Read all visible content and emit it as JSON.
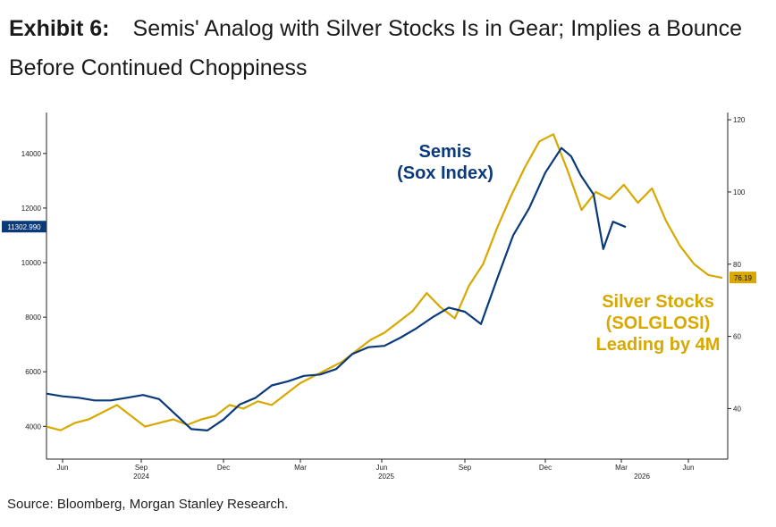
{
  "exhibit_label": "Exhibit 6:",
  "title_text": "Semis' Analog with Silver Stocks Is in Gear; Implies a Bounce Before Continued Choppiness",
  "source_text": "Source: Bloomberg, Morgan Stanley Research.",
  "colors": {
    "semis": "#0b3a7a",
    "silver": "#d9a800",
    "axis": "#222222"
  },
  "chart_data": {
    "type": "line",
    "grid": false,
    "x_ticks": [
      "Jun",
      "Sep",
      "Dec",
      "Mar",
      "Jun",
      "Sep",
      "Dec",
      "Mar",
      "Jun"
    ],
    "year_labels": [
      "2024",
      "2025",
      "2026"
    ],
    "left_axis": {
      "ticks": [
        4000,
        6000,
        8000,
        10000,
        12000,
        14000
      ],
      "range": [
        2800,
        15500
      ]
    },
    "right_axis": {
      "ticks": [
        40,
        60,
        80,
        100,
        120
      ],
      "range": [
        26,
        122
      ]
    },
    "series": [
      {
        "name": "Semis (Sox Index)",
        "axis": "left",
        "last_value_label": "11302.990",
        "values": [
          [
            0,
            5200
          ],
          [
            0.5,
            5100
          ],
          [
            1,
            5050
          ],
          [
            1.5,
            4950
          ],
          [
            2,
            4950
          ],
          [
            2.5,
            5050
          ],
          [
            3,
            5150
          ],
          [
            3.5,
            5000
          ],
          [
            4,
            4450
          ],
          [
            4.5,
            3900
          ],
          [
            5,
            3850
          ],
          [
            5.5,
            4250
          ],
          [
            6,
            4800
          ],
          [
            6.5,
            5050
          ],
          [
            7,
            5500
          ],
          [
            7.5,
            5650
          ],
          [
            8,
            5850
          ],
          [
            8.5,
            5900
          ],
          [
            9,
            6100
          ],
          [
            9.5,
            6650
          ],
          [
            10,
            6900
          ],
          [
            10.5,
            6950
          ],
          [
            11,
            7250
          ],
          [
            11.5,
            7600
          ],
          [
            12,
            8000
          ],
          [
            12.5,
            8350
          ],
          [
            13,
            8200
          ],
          [
            13.5,
            7750
          ],
          [
            14,
            9400
          ],
          [
            14.5,
            11000
          ],
          [
            15,
            12000
          ],
          [
            15.5,
            13300
          ],
          [
            16,
            14200
          ],
          [
            16.3,
            13900
          ],
          [
            16.6,
            13200
          ],
          [
            17,
            12500
          ],
          [
            17.3,
            10500
          ],
          [
            17.6,
            11500
          ],
          [
            18,
            11302.99
          ]
        ]
      },
      {
        "name": "Silver Stocks (SOLGLOSI) Leading by 4M",
        "axis": "right",
        "last_value_label": "76.19",
        "values": [
          [
            0,
            35
          ],
          [
            0.5,
            34
          ],
          [
            1,
            36
          ],
          [
            1.5,
            37
          ],
          [
            2,
            39
          ],
          [
            2.5,
            41
          ],
          [
            3,
            38
          ],
          [
            3.5,
            35
          ],
          [
            4,
            36
          ],
          [
            4.5,
            37
          ],
          [
            5,
            35.5
          ],
          [
            5.5,
            37
          ],
          [
            6,
            38
          ],
          [
            6.5,
            41
          ],
          [
            7,
            40
          ],
          [
            7.5,
            42
          ],
          [
            8,
            41
          ],
          [
            8.5,
            44
          ],
          [
            9,
            47
          ],
          [
            9.5,
            49
          ],
          [
            10,
            51
          ],
          [
            10.5,
            53
          ],
          [
            11,
            56
          ],
          [
            11.5,
            59
          ],
          [
            12,
            61
          ],
          [
            12.5,
            64
          ],
          [
            13,
            67
          ],
          [
            13.5,
            72
          ],
          [
            14,
            68
          ],
          [
            14.5,
            65
          ],
          [
            15,
            74
          ],
          [
            15.5,
            80
          ],
          [
            16,
            90
          ],
          [
            16.5,
            99
          ],
          [
            17,
            107
          ],
          [
            17.5,
            114
          ],
          [
            18,
            116
          ],
          [
            18.5,
            106
          ],
          [
            19,
            95
          ],
          [
            19.5,
            100
          ],
          [
            20,
            98
          ],
          [
            20.5,
            102
          ],
          [
            21,
            97
          ],
          [
            21.5,
            101
          ],
          [
            22,
            92
          ],
          [
            22.5,
            85
          ],
          [
            23,
            80
          ],
          [
            23.5,
            77
          ],
          [
            24,
            76.19
          ]
        ]
      }
    ]
  }
}
